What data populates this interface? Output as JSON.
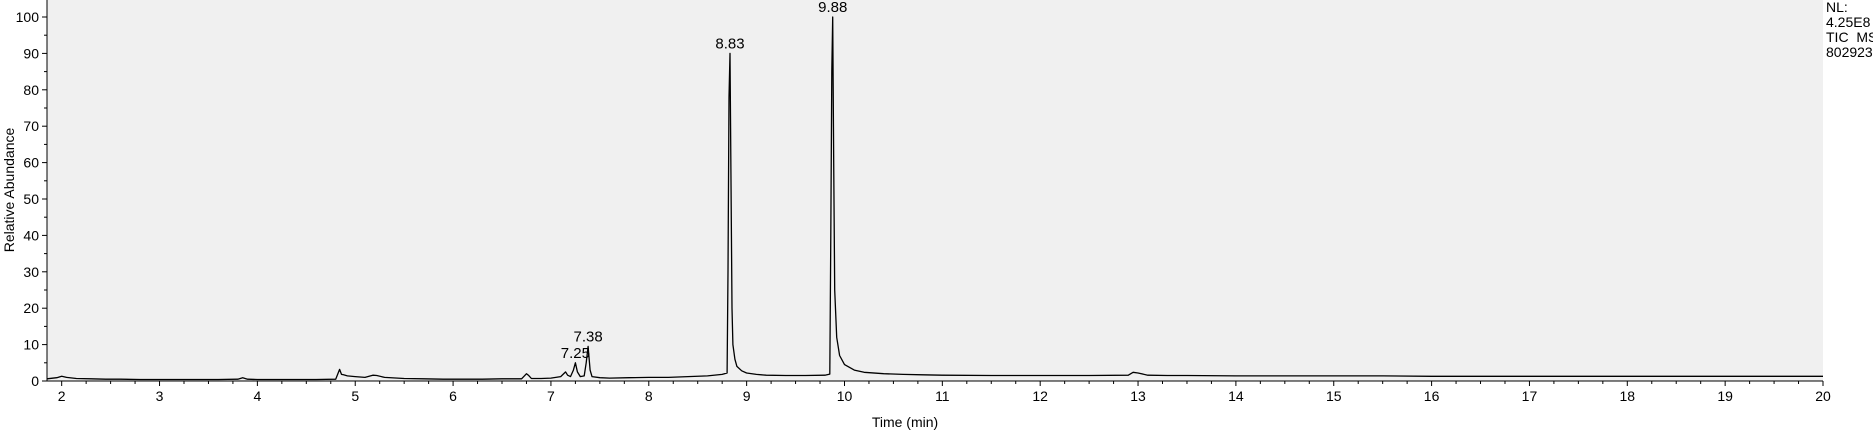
{
  "chart_data": {
    "type": "line",
    "xlabel": "Time (min)",
    "ylabel": "Relative Abundance",
    "xlim": [
      1.85,
      20
    ],
    "ylim": [
      0,
      100
    ],
    "xticks": [
      2,
      3,
      4,
      5,
      6,
      7,
      8,
      9,
      10,
      11,
      12,
      13,
      14,
      15,
      16,
      17,
      18,
      19,
      20
    ],
    "yticks": [
      0,
      10,
      20,
      30,
      40,
      50,
      60,
      70,
      80,
      90,
      100
    ],
    "grid": false,
    "info_text": [
      "NL:",
      "4.25E8",
      "TIC  MS",
      "802923"
    ],
    "peak_labels": [
      {
        "x": 7.25,
        "y": 5.0,
        "label": "7.25"
      },
      {
        "x": 7.38,
        "y": 9.5,
        "label": "7.38"
      },
      {
        "x": 8.83,
        "y": 90.0,
        "label": "8.83"
      },
      {
        "x": 9.88,
        "y": 100.0,
        "label": "9.88"
      }
    ],
    "series": [
      {
        "x": [
          1.85,
          1.95,
          2.0,
          2.05,
          2.15,
          2.3,
          2.45,
          2.6,
          2.8,
          3.0,
          3.2,
          3.4,
          3.6,
          3.8,
          3.85,
          3.9,
          4.0,
          4.2,
          4.4,
          4.6,
          4.8,
          4.84,
          4.86,
          4.88,
          4.92,
          5.0,
          5.1,
          5.18,
          5.22,
          5.3,
          5.5,
          5.7,
          5.9,
          6.1,
          6.3,
          6.5,
          6.7,
          6.75,
          6.77,
          6.8,
          6.9,
          7.0,
          7.1,
          7.15,
          7.17,
          7.2,
          7.23,
          7.25,
          7.27,
          7.3,
          7.34,
          7.36,
          7.38,
          7.4,
          7.42,
          7.5,
          7.6,
          7.8,
          8.0,
          8.2,
          8.4,
          8.6,
          8.75,
          8.8,
          8.81,
          8.82,
          8.83,
          8.84,
          8.85,
          8.86,
          8.88,
          8.9,
          8.95,
          9.0,
          9.1,
          9.2,
          9.4,
          9.6,
          9.8,
          9.85,
          9.86,
          9.87,
          9.88,
          9.89,
          9.9,
          9.92,
          9.95,
          10.0,
          10.1,
          10.2,
          10.4,
          10.6,
          10.8,
          11.0,
          11.5,
          12.0,
          12.5,
          12.9,
          12.95,
          13.0,
          13.1,
          13.3,
          13.5,
          14.0,
          14.5,
          15.0,
          15.5,
          16.0,
          16.5,
          17.0,
          17.5,
          18.0,
          18.5,
          19.0,
          19.5,
          20.0
        ],
        "y": [
          0.6,
          0.9,
          1.3,
          1.0,
          0.7,
          0.6,
          0.5,
          0.5,
          0.4,
          0.4,
          0.4,
          0.4,
          0.4,
          0.5,
          0.9,
          0.5,
          0.4,
          0.4,
          0.4,
          0.4,
          0.5,
          3.2,
          1.8,
          1.7,
          1.4,
          1.2,
          1.0,
          1.6,
          1.5,
          1.0,
          0.7,
          0.6,
          0.5,
          0.5,
          0.5,
          0.6,
          0.6,
          2.0,
          1.6,
          0.7,
          0.7,
          0.8,
          1.2,
          2.5,
          1.6,
          1.2,
          3.0,
          5.0,
          2.5,
          1.2,
          1.4,
          5.0,
          9.5,
          3.0,
          1.2,
          0.9,
          0.8,
          0.9,
          1.0,
          1.0,
          1.2,
          1.4,
          1.8,
          2.2,
          30.0,
          78.0,
          90.0,
          55.0,
          20.0,
          10.0,
          6.0,
          4.0,
          2.8,
          2.2,
          1.8,
          1.6,
          1.5,
          1.5,
          1.6,
          1.9,
          40.0,
          85.0,
          100.0,
          60.0,
          25.0,
          12.0,
          7.0,
          4.5,
          3.0,
          2.4,
          2.0,
          1.8,
          1.7,
          1.6,
          1.5,
          1.5,
          1.5,
          1.6,
          2.4,
          2.2,
          1.6,
          1.5,
          1.5,
          1.4,
          1.4,
          1.4,
          1.4,
          1.3,
          1.3,
          1.3,
          1.3,
          1.3,
          1.3,
          1.3,
          1.3,
          1.3
        ]
      }
    ]
  }
}
